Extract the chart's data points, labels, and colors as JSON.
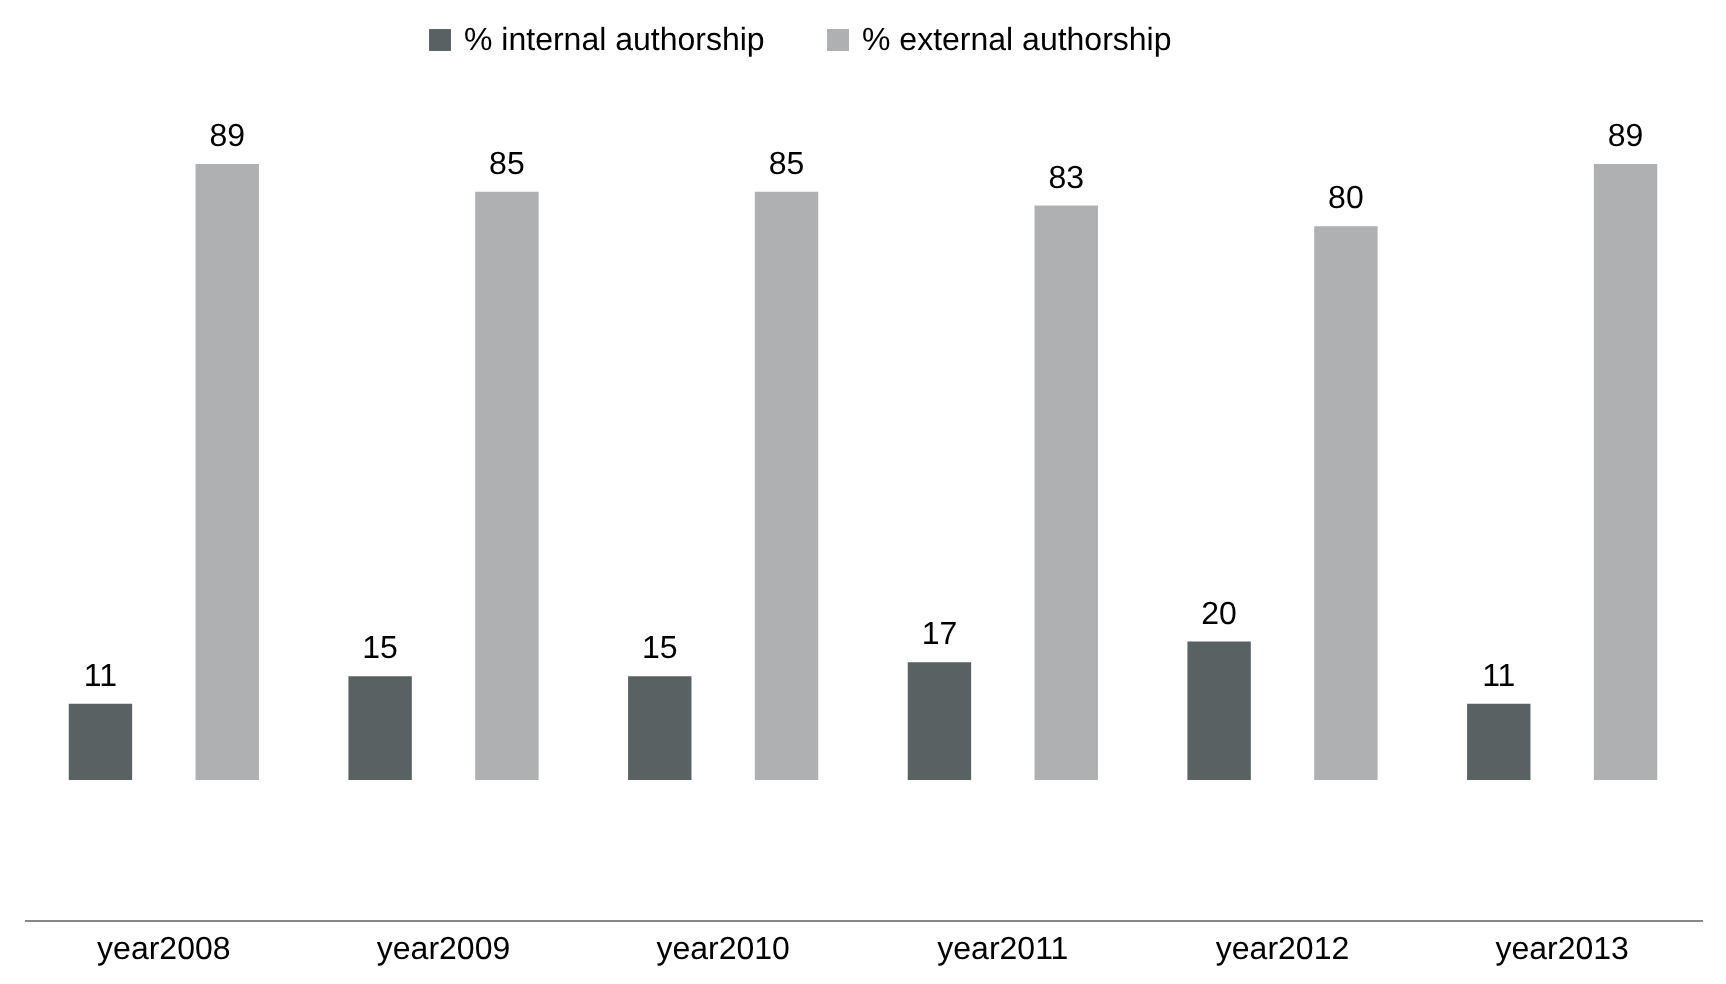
{
  "chart_data": {
    "type": "bar",
    "categories": [
      "year2008",
      "year2009",
      "year2010",
      "year2011",
      "year2012",
      "year2013"
    ],
    "series": [
      {
        "name": "% internal authorship",
        "color": "#5a6163",
        "values": [
          11,
          15,
          15,
          17,
          20,
          11
        ]
      },
      {
        "name": "% external authorship",
        "color": "#aeb0b1",
        "values": [
          89,
          85,
          85,
          83,
          80,
          89
        ]
      }
    ],
    "data_labels": true,
    "legend": "top",
    "grid": false
  }
}
